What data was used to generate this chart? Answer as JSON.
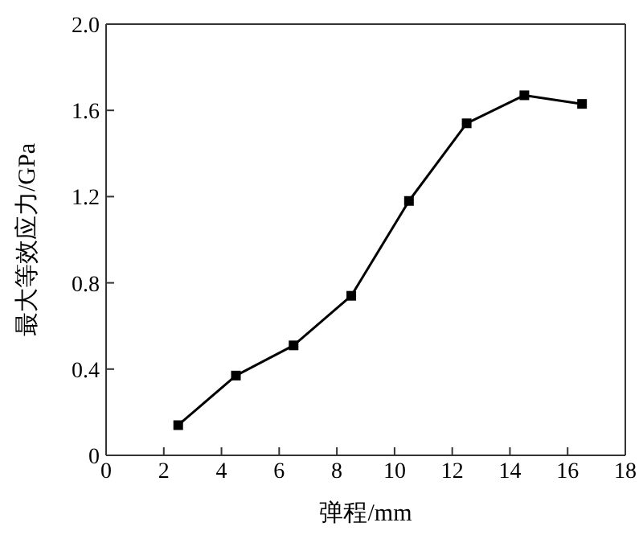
{
  "chart_data": {
    "type": "line",
    "xlabel": "弹程/mm",
    "ylabel": "最大等效应力/GPa",
    "x": [
      2.5,
      4.5,
      6.5,
      8.5,
      10.5,
      12.5,
      14.5,
      16.5
    ],
    "series": [
      {
        "color": "#000000",
        "values": [
          0.14,
          0.37,
          0.51,
          0.74,
          1.18,
          1.54,
          1.67,
          1.63
        ]
      }
    ],
    "xlim": [
      0,
      18
    ],
    "xticks": [
      0,
      2,
      4,
      6,
      8,
      10,
      12,
      14,
      16,
      18
    ],
    "ylim": [
      0,
      2.0
    ],
    "yticks": [
      {
        "value": 0,
        "label": "0"
      },
      {
        "value": 0.4,
        "label": "0.4"
      },
      {
        "value": 0.8,
        "label": "0.8"
      },
      {
        "value": 1.2,
        "label": "1.2"
      },
      {
        "value": 1.6,
        "label": "1.6"
      },
      {
        "value": 2.0,
        "label": "2.0"
      }
    ],
    "marker": "square",
    "line_style": "solid",
    "grid": false,
    "legend": false
  }
}
